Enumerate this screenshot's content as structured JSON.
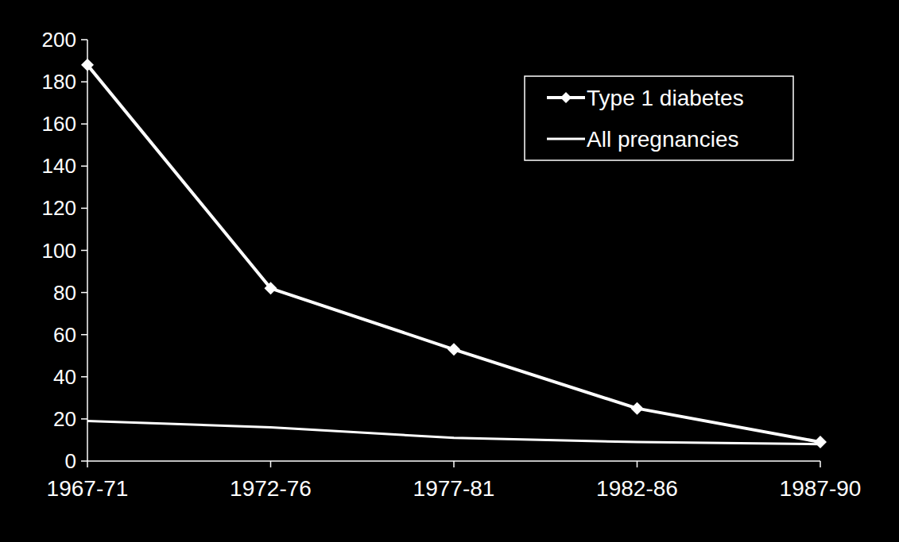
{
  "chart_data": {
    "type": "line",
    "categories": [
      "1967-71",
      "1972-76",
      "1977-81",
      "1982-86",
      "1987-90"
    ],
    "series": [
      {
        "name": "Type 1 diabetes",
        "color": "#ffffff",
        "marker": "diamond",
        "line_style": "solid",
        "values": [
          188,
          82,
          53,
          25,
          9
        ]
      },
      {
        "name": "All pregnancies",
        "color": "#ffffff",
        "marker": "none",
        "line_style": "solid",
        "values": [
          19,
          16,
          11,
          9,
          8
        ]
      }
    ],
    "ylim": [
      0,
      200
    ],
    "yticks": [
      0,
      20,
      40,
      60,
      80,
      100,
      120,
      140,
      160,
      180,
      200
    ],
    "grid": false,
    "legend": "top-right"
  }
}
